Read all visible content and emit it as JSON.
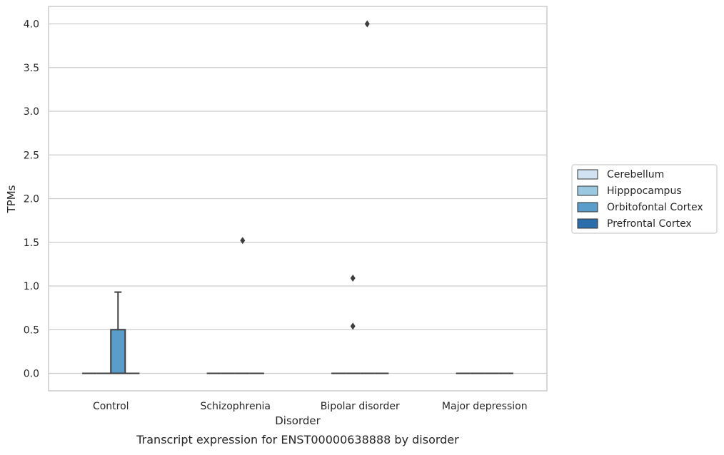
{
  "chart_data": {
    "type": "box",
    "title": "",
    "caption": "Transcript expression for ENST00000638888 by disorder",
    "xlabel": "Disorder",
    "ylabel": "TPMs",
    "categories": [
      "Control",
      "Schizophrenia",
      "Bipolar disorder",
      "Major depression"
    ],
    "ylim": [
      -0.2,
      4.2
    ],
    "yticks": [
      0.0,
      0.5,
      1.0,
      1.5,
      2.0,
      2.5,
      3.0,
      3.5,
      4.0
    ],
    "ytick_labels": [
      "0.0",
      "0.5",
      "1.0",
      "1.5",
      "2.0",
      "2.5",
      "3.0",
      "3.5",
      "4.0"
    ],
    "grid": true,
    "legend_position": "center-right",
    "series": [
      {
        "name": "Cerebellum",
        "color": "#d1e2f2",
        "boxes": [
          {
            "q1": 0,
            "median": 0,
            "q3": 0,
            "whisker_low": 0,
            "whisker_high": 0,
            "outliers": []
          },
          {
            "q1": 0,
            "median": 0,
            "q3": 0,
            "whisker_low": 0,
            "whisker_high": 0,
            "outliers": []
          },
          {
            "q1": 0,
            "median": 0,
            "q3": 0,
            "whisker_low": 0,
            "whisker_high": 0,
            "outliers": []
          },
          {
            "q1": 0,
            "median": 0,
            "q3": 0,
            "whisker_low": 0,
            "whisker_high": 0,
            "outliers": []
          }
        ]
      },
      {
        "name": "Hipppocampus",
        "color": "#9ac8e0",
        "boxes": [
          {
            "q1": 0,
            "median": 0,
            "q3": 0,
            "whisker_low": 0,
            "whisker_high": 0,
            "outliers": []
          },
          {
            "q1": 0,
            "median": 0,
            "q3": 0,
            "whisker_low": 0,
            "whisker_high": 0,
            "outliers": []
          },
          {
            "q1": 0,
            "median": 0,
            "q3": 0,
            "whisker_low": 0,
            "whisker_high": 0,
            "outliers": [
              0.54,
              1.09
            ]
          },
          {
            "q1": 0,
            "median": 0,
            "q3": 0,
            "whisker_low": 0,
            "whisker_high": 0,
            "outliers": []
          }
        ]
      },
      {
        "name": "Orbitofontal Cortex",
        "color": "#5a9dcb",
        "boxes": [
          {
            "q1": 0,
            "median": 0,
            "q3": 0.5,
            "whisker_low": 0,
            "whisker_high": 0.93,
            "outliers": []
          },
          {
            "q1": 0,
            "median": 0,
            "q3": 0,
            "whisker_low": 0,
            "whisker_high": 0,
            "outliers": [
              1.52
            ]
          },
          {
            "q1": 0,
            "median": 0,
            "q3": 0,
            "whisker_low": 0,
            "whisker_high": 0,
            "outliers": [
              4.0
            ]
          },
          {
            "q1": 0,
            "median": 0,
            "q3": 0,
            "whisker_low": 0,
            "whisker_high": 0,
            "outliers": []
          }
        ]
      },
      {
        "name": "Prefrontal Cortex",
        "color": "#2c6ea9",
        "boxes": [
          {
            "q1": 0,
            "median": 0,
            "q3": 0,
            "whisker_low": 0,
            "whisker_high": 0,
            "outliers": []
          },
          {
            "q1": 0,
            "median": 0,
            "q3": 0,
            "whisker_low": 0,
            "whisker_high": 0,
            "outliers": []
          },
          {
            "q1": 0,
            "median": 0,
            "q3": 0,
            "whisker_low": 0,
            "whisker_high": 0,
            "outliers": []
          },
          {
            "q1": 0,
            "median": 0,
            "q3": 0,
            "whisker_low": 0,
            "whisker_high": 0,
            "outliers": []
          }
        ]
      }
    ]
  },
  "colors": {
    "grid": "#cccccc",
    "box_line": "#3d3d3d",
    "frame": "#cccccc"
  }
}
